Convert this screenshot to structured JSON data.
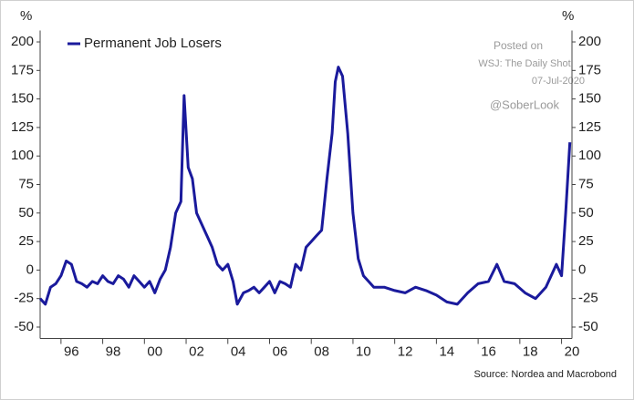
{
  "chart_data": {
    "type": "line",
    "ylabel": "%",
    "y2label": "%",
    "legend": "upper left",
    "source": "Source: Nordea and Macrobond",
    "annotations": [
      "Posted on",
      "WSJ: The Daily Shot",
      "07-Jul-2020",
      "@SoberLook"
    ],
    "xlim": [
      1995,
      2020.5
    ],
    "xticks": [
      {
        "value": 1996,
        "label": "96"
      },
      {
        "value": 1998,
        "label": "98"
      },
      {
        "value": 2000,
        "label": "00"
      },
      {
        "value": 2002,
        "label": "02"
      },
      {
        "value": 2004,
        "label": "04"
      },
      {
        "value": 2006,
        "label": "06"
      },
      {
        "value": 2008,
        "label": "08"
      },
      {
        "value": 2010,
        "label": "10"
      },
      {
        "value": 2012,
        "label": "12"
      },
      {
        "value": 2014,
        "label": "14"
      },
      {
        "value": 2016,
        "label": "16"
      },
      {
        "value": 2018,
        "label": "18"
      },
      {
        "value": 2020,
        "label": "20"
      }
    ],
    "ylim": [
      -60,
      210
    ],
    "yticks": [
      -50,
      -25,
      0,
      25,
      50,
      75,
      100,
      125,
      150,
      175,
      200
    ],
    "y2lim": [
      -60,
      210
    ],
    "y2ticks": [
      -50,
      -25,
      0,
      25,
      50,
      75,
      100,
      125,
      150,
      175,
      200
    ],
    "x": [
      1995.0,
      1995.25,
      1995.5,
      1995.75,
      1996.0,
      1996.25,
      1996.5,
      1996.75,
      1997.0,
      1997.25,
      1997.5,
      1997.75,
      1998.0,
      1998.25,
      1998.5,
      1998.75,
      1999.0,
      1999.25,
      1999.5,
      1999.75,
      2000.0,
      2000.25,
      2000.5,
      2000.75,
      2001.0,
      2001.25,
      2001.5,
      2001.75,
      2001.9,
      2002.1,
      2002.3,
      2002.5,
      2002.75,
      2003.0,
      2003.25,
      2003.5,
      2003.75,
      2004.0,
      2004.25,
      2004.45,
      2004.75,
      2005.0,
      2005.25,
      2005.5,
      2005.75,
      2006.0,
      2006.25,
      2006.5,
      2006.75,
      2007.0,
      2007.25,
      2007.5,
      2007.75,
      2008.0,
      2008.25,
      2008.5,
      2008.75,
      2009.0,
      2009.15,
      2009.3,
      2009.5,
      2009.75,
      2010.0,
      2010.25,
      2010.5,
      2010.75,
      2011.0,
      2011.5,
      2012.0,
      2012.5,
      2013.0,
      2013.5,
      2014.0,
      2014.5,
      2015.0,
      2015.5,
      2016.0,
      2016.5,
      2016.9,
      2017.25,
      2017.75,
      2018.25,
      2018.75,
      2019.25,
      2019.75,
      2020.0,
      2020.2,
      2020.4
    ],
    "series": [
      {
        "name": "Permanent Job Losers",
        "color": "#1a1a9c",
        "values": [
          -25,
          -30,
          -15,
          -12,
          -5,
          8,
          5,
          -10,
          -12,
          -15,
          -10,
          -12,
          -5,
          -10,
          -12,
          -5,
          -8,
          -15,
          -5,
          -10,
          -15,
          -10,
          -20,
          -8,
          0,
          20,
          50,
          60,
          153,
          90,
          80,
          50,
          40,
          30,
          20,
          5,
          0,
          5,
          -10,
          -30,
          -20,
          -18,
          -15,
          -20,
          -15,
          -10,
          -20,
          -10,
          -12,
          -15,
          5,
          0,
          20,
          25,
          30,
          35,
          80,
          120,
          165,
          178,
          170,
          120,
          50,
          10,
          -5,
          -10,
          -15,
          -15,
          -18,
          -20,
          -15,
          -18,
          -22,
          -28,
          -30,
          -20,
          -12,
          -10,
          5,
          -10,
          -12,
          -20,
          -25,
          -15,
          5,
          -5,
          50,
          112
        ]
      }
    ]
  }
}
